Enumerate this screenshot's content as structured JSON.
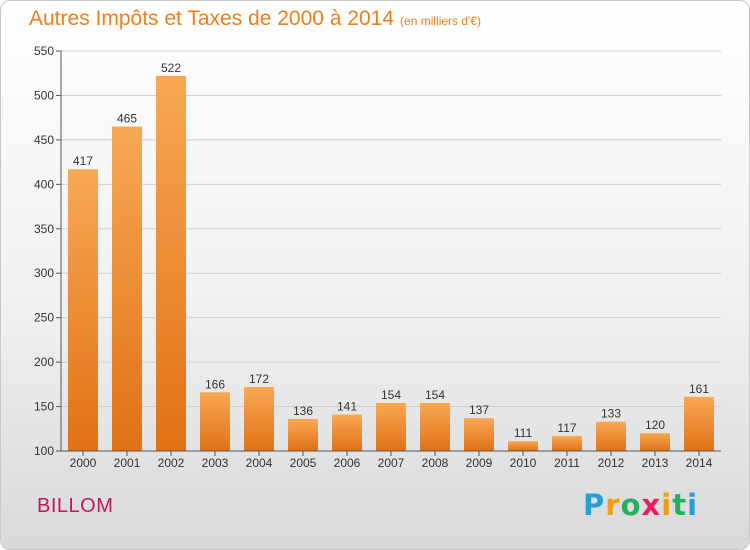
{
  "header": {
    "title": "Autres Impôts et Taxes de 2000 à 2014",
    "unit": "(en milliers d'€)"
  },
  "footer": {
    "town": "BILLOM"
  },
  "brand": {
    "letters": [
      "P",
      "r",
      "o",
      "x",
      "i",
      "t",
      "i"
    ],
    "colors": [
      "#2a9fd6",
      "#f39c12",
      "#27ae60",
      "#e91e63",
      "#f39c12",
      "#27ae60",
      "#2a9fd6"
    ]
  },
  "chart_data": {
    "type": "bar",
    "title": "Autres Impôts et Taxes de 2000 à 2014",
    "subtitle": "(en milliers d'€)",
    "categories": [
      "2000",
      "2001",
      "2002",
      "2003",
      "2004",
      "2005",
      "2006",
      "2007",
      "2008",
      "2009",
      "2010",
      "2011",
      "2012",
      "2013",
      "2014"
    ],
    "values": [
      417,
      465,
      522,
      166,
      172,
      136,
      141,
      154,
      154,
      137,
      111,
      117,
      133,
      120,
      161
    ],
    "ylim": [
      100,
      550
    ],
    "yticks": [
      100,
      150,
      200,
      250,
      300,
      350,
      400,
      450,
      500,
      550
    ],
    "grid": true,
    "bar_color": "#f08c2a"
  }
}
